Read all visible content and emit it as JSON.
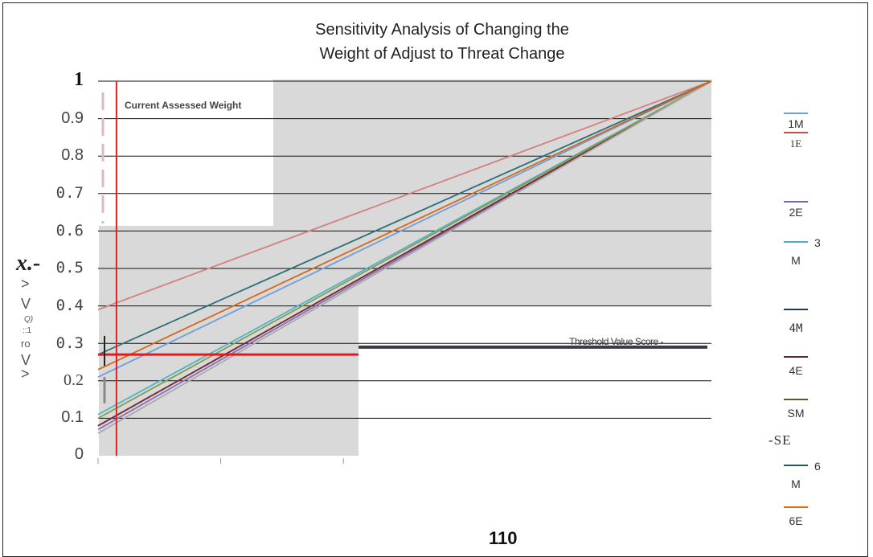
{
  "chart_data": {
    "type": "line",
    "title_lines": [
      "Sensitivity Analysis of Changing the",
      "Weight of Adjust to Threat Change"
    ],
    "y_ticks": [
      "1",
      "0.9",
      "0.8",
      "0.7",
      "0.6",
      "0.5",
      "0.4",
      "0.3",
      "0.2",
      "0.1",
      "0"
    ],
    "y_tick_values": [
      1,
      0.9,
      0.8,
      0.7,
      0.6,
      0.5,
      0.4,
      0.3,
      0.2,
      0.1,
      0
    ],
    "ylim": [
      0,
      1
    ],
    "xlim": [
      0,
      1
    ],
    "grid": true,
    "ylabel_fragments": [
      "x.-",
      "V",
      ">",
      "ro",
      "Q)",
      "::1",
      "V",
      ">"
    ],
    "annotations": {
      "current_weight_label": "Current Assessed Weight",
      "current_weight_x": 0.03,
      "threshold_label": "Threshold Value Score -",
      "threshold_y": 0.29,
      "crossing_y": 0.27
    },
    "series": [
      {
        "name": "1M",
        "color": "#6f9fd8",
        "x": [
          0,
          1
        ],
        "values": [
          0.21,
          1.0
        ]
      },
      {
        "name": "1E",
        "color": "#d77f7f",
        "x": [
          0,
          1
        ],
        "values": [
          0.39,
          1.0
        ]
      },
      {
        "name": "2E",
        "color": "#8b6fb4",
        "x": [
          0,
          1
        ],
        "values": [
          0.07,
          1.0
        ]
      },
      {
        "name": "3M",
        "color": "#4bb6c4",
        "x": [
          0,
          1
        ],
        "values": [
          0.11,
          1.0
        ]
      },
      {
        "name": "4M",
        "color": "#2d3e6e",
        "x": [
          0,
          1
        ],
        "values": [
          0.08,
          1.0
        ]
      },
      {
        "name": "4E",
        "color": "#7a2e36",
        "x": [
          0,
          1
        ],
        "values": [
          0.08,
          1.0
        ]
      },
      {
        "name": "5M",
        "color": "#8a9a55",
        "x": [
          0,
          1
        ],
        "values": [
          0.1,
          1.0
        ]
      },
      {
        "name": "5E",
        "color": "#aaaaaa",
        "x": [
          0,
          1
        ],
        "values": [
          0.06,
          1.0
        ]
      },
      {
        "name": "6M",
        "color": "#2b6f7a",
        "x": [
          0,
          1
        ],
        "values": [
          0.27,
          1.0
        ]
      },
      {
        "name": "6E",
        "color": "#d2691e",
        "x": [
          0,
          1
        ],
        "values": [
          0.23,
          1.0
        ]
      }
    ]
  },
  "legend": [
    {
      "text": "1M",
      "color": "#6f9fd8",
      "mark": true
    },
    {
      "text": "1E",
      "color": "#c0504d",
      "mark": true
    },
    {
      "text": "2E",
      "color": "#8064a2",
      "mark": true
    },
    {
      "text": "3",
      "color": "",
      "mark": false
    },
    {
      "text": "M",
      "color": "#4bacc6",
      "mark": true
    },
    {
      "text": "4M",
      "color": "#1f3864",
      "mark": true
    },
    {
      "text": "4E",
      "color": "#632523",
      "mark": true
    },
    {
      "text": "SM",
      "color": "#4f6228",
      "mark": true
    },
    {
      "text": "-SE",
      "color": "",
      "mark": false
    },
    {
      "text": "6",
      "color": "",
      "mark": false
    },
    {
      "text": "M",
      "color": "#215967",
      "mark": true
    },
    {
      "text": "6E",
      "color": "#e46c0a",
      "mark": true
    }
  ],
  "page_number": "110"
}
